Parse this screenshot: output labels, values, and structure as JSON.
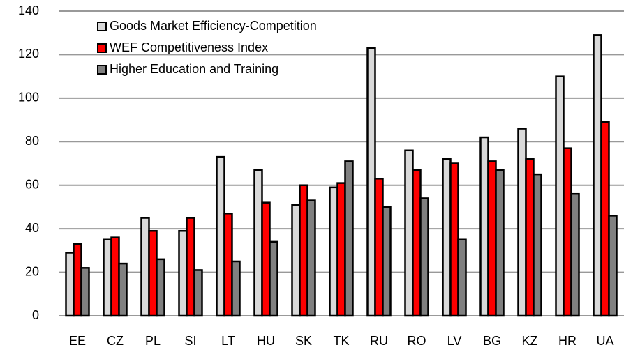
{
  "chart_data": {
    "type": "bar",
    "categories": [
      "EE",
      "CZ",
      "PL",
      "SI",
      "LT",
      "HU",
      "SK",
      "TK",
      "RU",
      "RO",
      "LV",
      "BG",
      "KZ",
      "HR",
      "UA"
    ],
    "series": [
      {
        "name": "Goods Market Efficiency-Competition",
        "color": "#d9d9d9",
        "values": [
          29,
          35,
          45,
          39,
          73,
          67,
          51,
          59,
          123,
          76,
          72,
          82,
          86,
          110,
          129
        ]
      },
      {
        "name": "WEF Competitiveness Index",
        "color": "#ff0000",
        "values": [
          33,
          36,
          39,
          45,
          47,
          52,
          60,
          61,
          63,
          67,
          70,
          71,
          72,
          77,
          89
        ]
      },
      {
        "name": "Higher Education and Training",
        "color": "#808080",
        "values": [
          22,
          24,
          26,
          21,
          25,
          34,
          53,
          71,
          50,
          54,
          35,
          67,
          65,
          56,
          46
        ]
      }
    ],
    "ylim": [
      0,
      140
    ],
    "yticks": [
      0,
      20,
      40,
      60,
      80,
      100,
      120,
      140
    ],
    "grid": true,
    "legend": "top-left"
  }
}
